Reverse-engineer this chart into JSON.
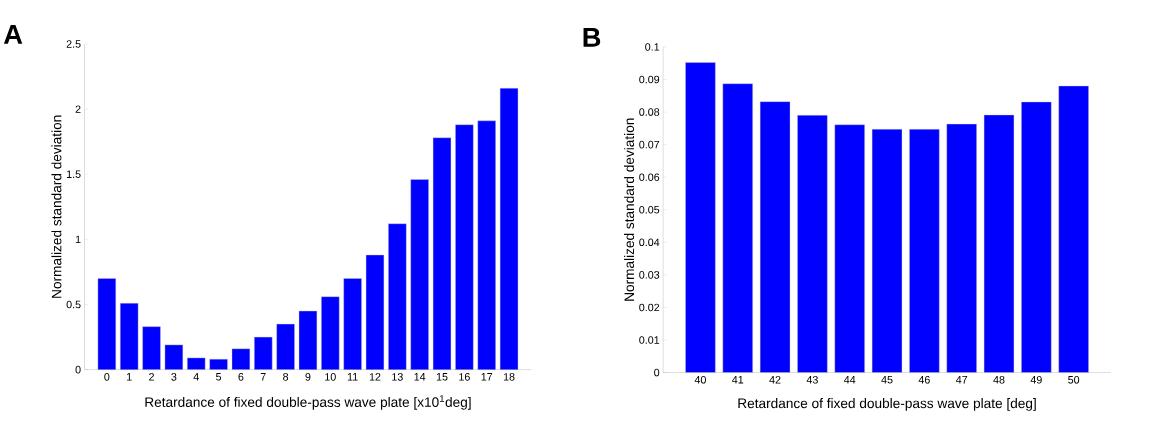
{
  "chart_data": [
    {
      "type": "bar",
      "annotations": [
        "A"
      ],
      "xlabel": "Retardance of fixed double-pass wave plate [x10$^{1}$deg]",
      "ylabel": "Normalized standard deviation",
      "categories": [
        "0",
        "1",
        "2",
        "3",
        "4",
        "5",
        "6",
        "7",
        "8",
        "9",
        "10",
        "11",
        "12",
        "13",
        "14",
        "15",
        "16",
        "17",
        "18"
      ],
      "values": [
        0.7,
        0.51,
        0.33,
        0.19,
        0.09,
        0.08,
        0.16,
        0.25,
        0.35,
        0.45,
        0.56,
        0.7,
        0.88,
        1.12,
        1.46,
        1.78,
        1.88,
        1.91,
        2.16
      ],
      "color": "#0000ff",
      "ylim": [
        0,
        2.5
      ],
      "yticks": [
        0,
        0.5,
        1,
        1.5,
        2,
        2.5
      ],
      "grid": false
    },
    {
      "type": "bar",
      "annotations": [
        "B"
      ],
      "xlabel": "Retardance of fixed double-pass wave plate [deg]",
      "ylabel": "Normalized standard deviation",
      "categories": [
        "40",
        "41",
        "42",
        "43",
        "44",
        "45",
        "46",
        "47",
        "48",
        "49",
        "50"
      ],
      "values": [
        0.0952,
        0.0887,
        0.0832,
        0.079,
        0.0761,
        0.0747,
        0.0747,
        0.0763,
        0.0791,
        0.0831,
        0.088
      ],
      "color": "#0000ff",
      "ylim": [
        0,
        0.1
      ],
      "yticks": [
        0,
        0.01,
        0.02,
        0.03,
        0.04,
        0.05,
        0.06,
        0.07,
        0.08,
        0.09,
        0.1
      ],
      "grid": false
    }
  ]
}
